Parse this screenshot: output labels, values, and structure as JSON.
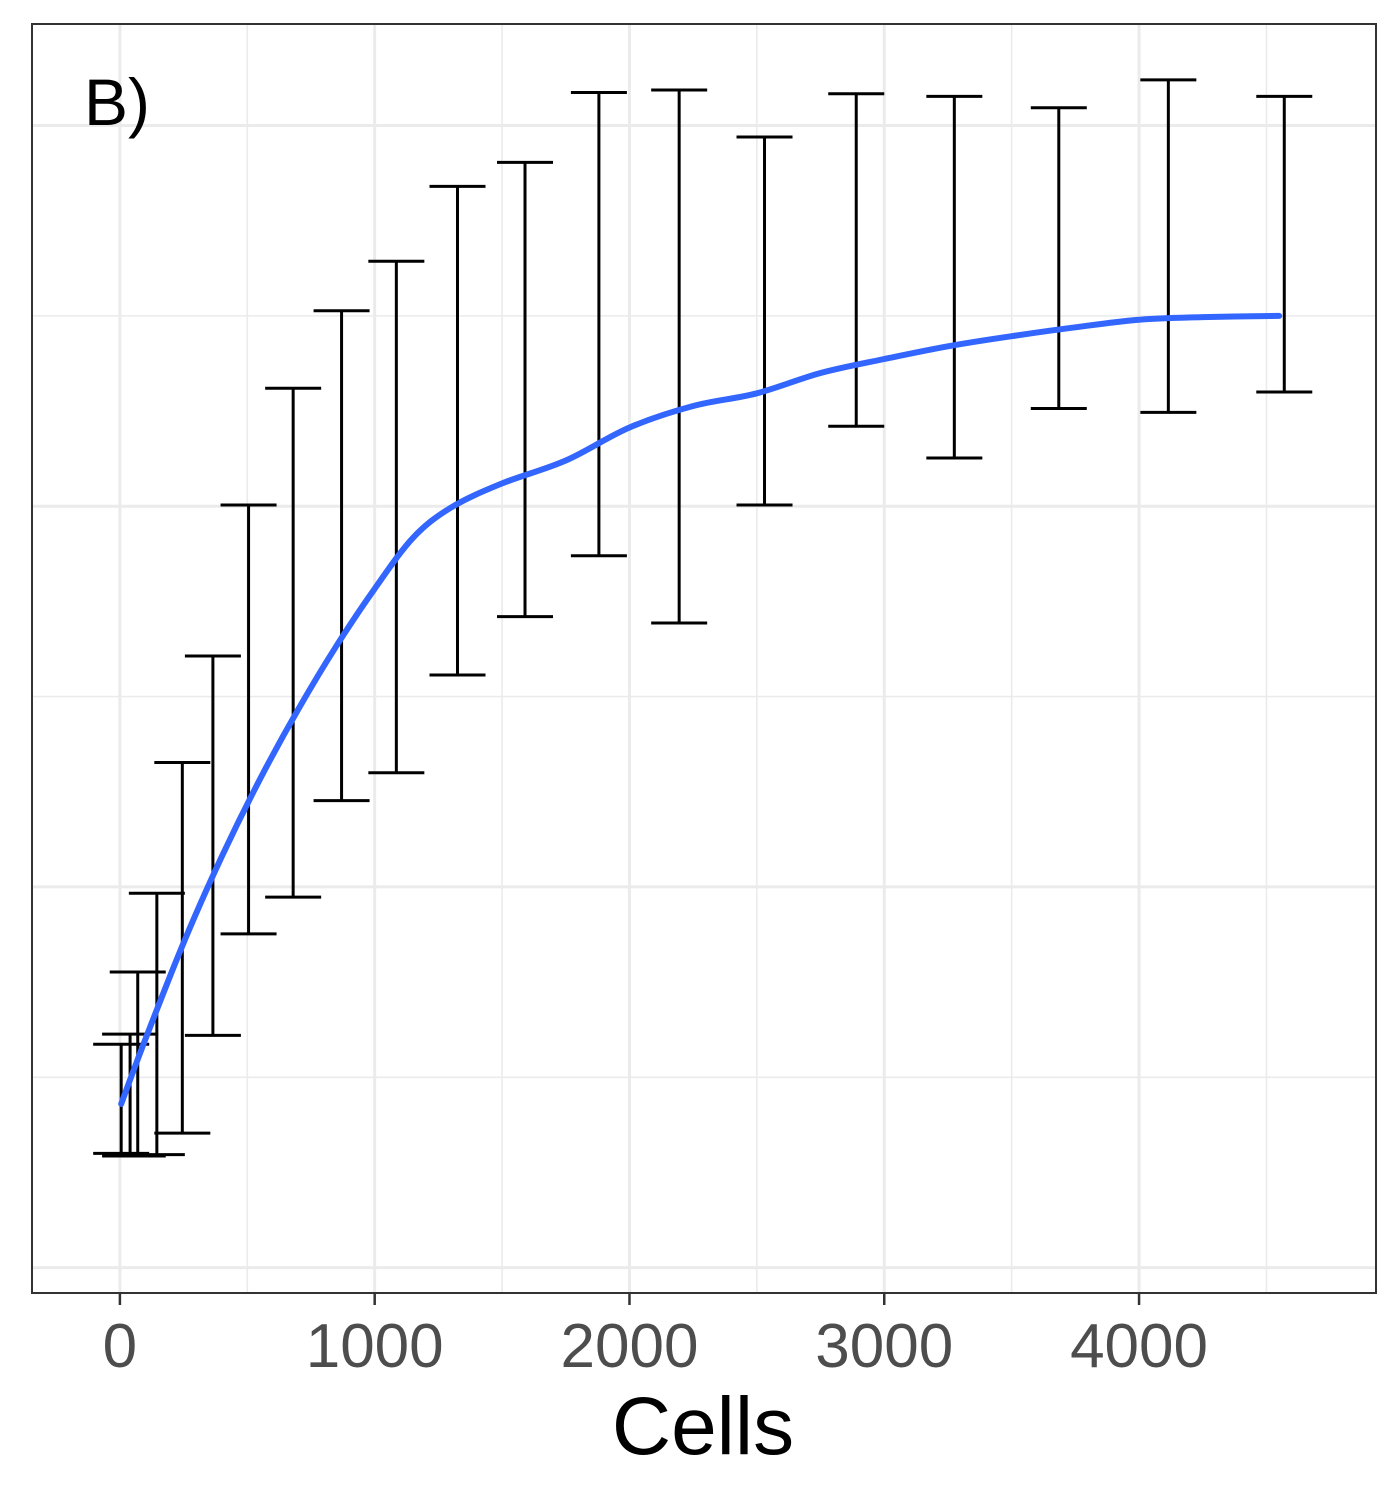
{
  "chart_data": {
    "type": "line",
    "panel_label": "B)",
    "xlabel": "Cells",
    "ylabel": "",
    "x_ticks": [
      "0",
      "1000",
      "2000",
      "3000",
      "4000"
    ],
    "xlim": [
      -345,
      4930
    ],
    "ylim": [
      0,
      100
    ],
    "grid": true,
    "y_tick_labels_shown": false,
    "error_bars": [
      {
        "x": 5,
        "low": 11.0,
        "high": 19.6
      },
      {
        "x": 40,
        "low": 10.8,
        "high": 20.4
      },
      {
        "x": 70,
        "low": 10.8,
        "high": 25.3
      },
      {
        "x": 145,
        "low": 10.9,
        "high": 31.5
      },
      {
        "x": 245,
        "low": 12.6,
        "high": 41.8
      },
      {
        "x": 365,
        "low": 20.3,
        "high": 50.2
      },
      {
        "x": 505,
        "low": 28.3,
        "high": 62.1
      },
      {
        "x": 680,
        "low": 31.2,
        "high": 71.3
      },
      {
        "x": 870,
        "low": 38.8,
        "high": 77.4
      },
      {
        "x": 1085,
        "low": 41.0,
        "high": 81.3
      },
      {
        "x": 1325,
        "low": 48.7,
        "high": 87.2
      },
      {
        "x": 1590,
        "low": 53.3,
        "high": 89.1
      },
      {
        "x": 1880,
        "low": 58.1,
        "high": 94.6
      },
      {
        "x": 2195,
        "low": 52.8,
        "high": 94.8
      },
      {
        "x": 2530,
        "low": 62.1,
        "high": 91.1
      },
      {
        "x": 2890,
        "low": 68.3,
        "high": 94.5
      },
      {
        "x": 3275,
        "low": 65.8,
        "high": 94.3
      },
      {
        "x": 3685,
        "low": 69.7,
        "high": 93.4
      },
      {
        "x": 4115,
        "low": 69.4,
        "high": 95.6
      },
      {
        "x": 4570,
        "low": 71.0,
        "high": 94.3
      }
    ],
    "smooth_line": {
      "color": "#3366ff",
      "x": [
        5,
        100,
        250,
        400,
        550,
        700,
        850,
        1000,
        1150,
        1300,
        1500,
        1750,
        2000,
        2250,
        2500,
        2750,
        3000,
        3250,
        3500,
        3750,
        4000,
        4250,
        4550
      ],
      "y": [
        14.9,
        20.0,
        27.6,
        34.4,
        40.5,
        46.0,
        51.0,
        55.5,
        59.5,
        61.9,
        63.8,
        65.6,
        68.2,
        69.9,
        70.9,
        72.5,
        73.6,
        74.6,
        75.4,
        76.1,
        76.7,
        76.9,
        77.0
      ]
    },
    "colors": {
      "line": "#3366ff",
      "error_bar": "#000000",
      "grid": "#ebebeb",
      "panel_border": "#333333",
      "tick_label": "#4d4d4d"
    }
  }
}
